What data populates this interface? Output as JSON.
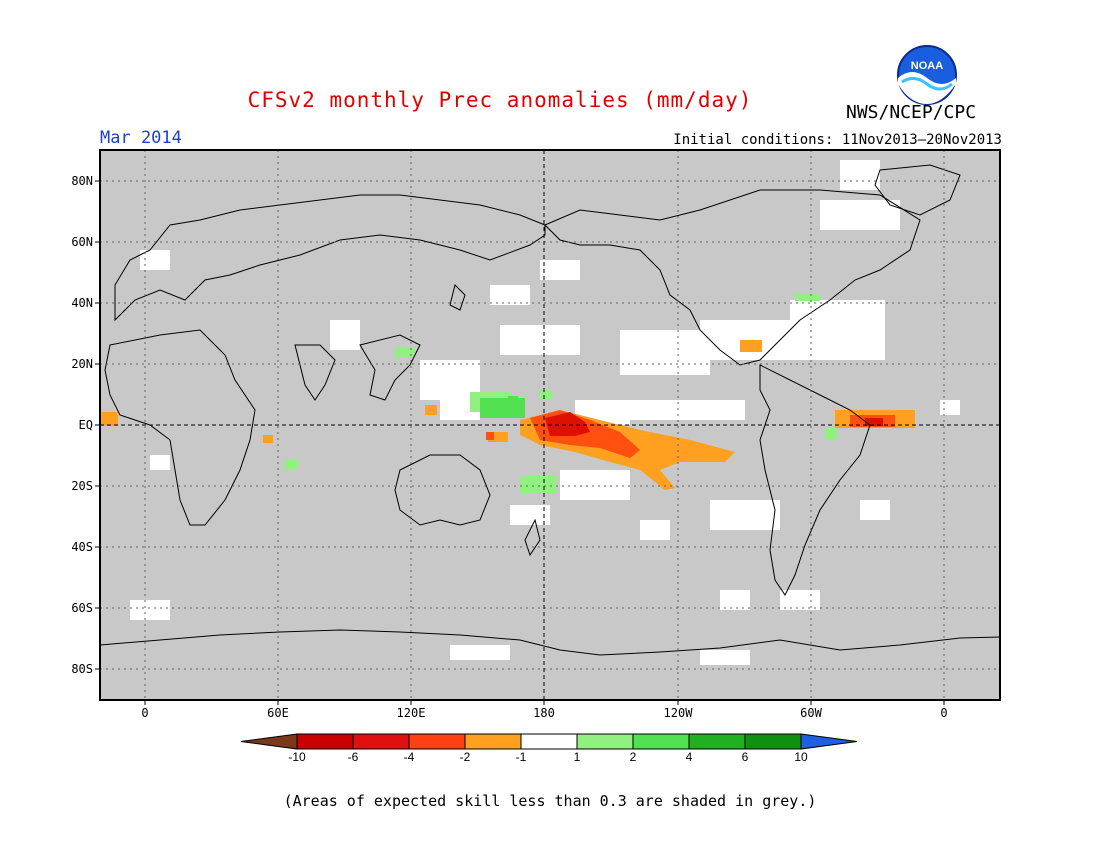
{
  "header": {
    "title": "CFSv2 monthly Prec anomalies (mm/day)",
    "month": "Mar 2014",
    "initial_conditions": "Initial conditions: 11Nov2013–20Nov2013",
    "agency": "NWS/NCEP/CPC",
    "logo_text": "NOAA"
  },
  "map": {
    "lat_labels": [
      "80N",
      "60N",
      "40N",
      "20N",
      "EQ",
      "20S",
      "40S",
      "60S",
      "80S"
    ],
    "lon_labels": [
      "0",
      "60E",
      "120E",
      "180",
      "120W",
      "60W",
      "0"
    ],
    "colors": {
      "grey": "#c8c8c8",
      "white": "#ffffff",
      "orange": "#ffa020",
      "red_orange": "#ff5010",
      "red": "#e01000",
      "light_green": "#90f080",
      "green": "#50e050"
    }
  },
  "legend": {
    "labels": [
      "-10",
      "-6",
      "-4",
      "-2",
      "-1",
      "1",
      "2",
      "4",
      "6",
      "10"
    ],
    "colors": [
      "#7a3a1a",
      "#c80000",
      "#e01010",
      "#ff4010",
      "#ffa020",
      "#ffffff",
      "#90f080",
      "#50e050",
      "#20b020",
      "#109010",
      "#2060e0"
    ]
  },
  "footnote": "(Areas of expected skill less than 0.3 are shaded in grey.)"
}
